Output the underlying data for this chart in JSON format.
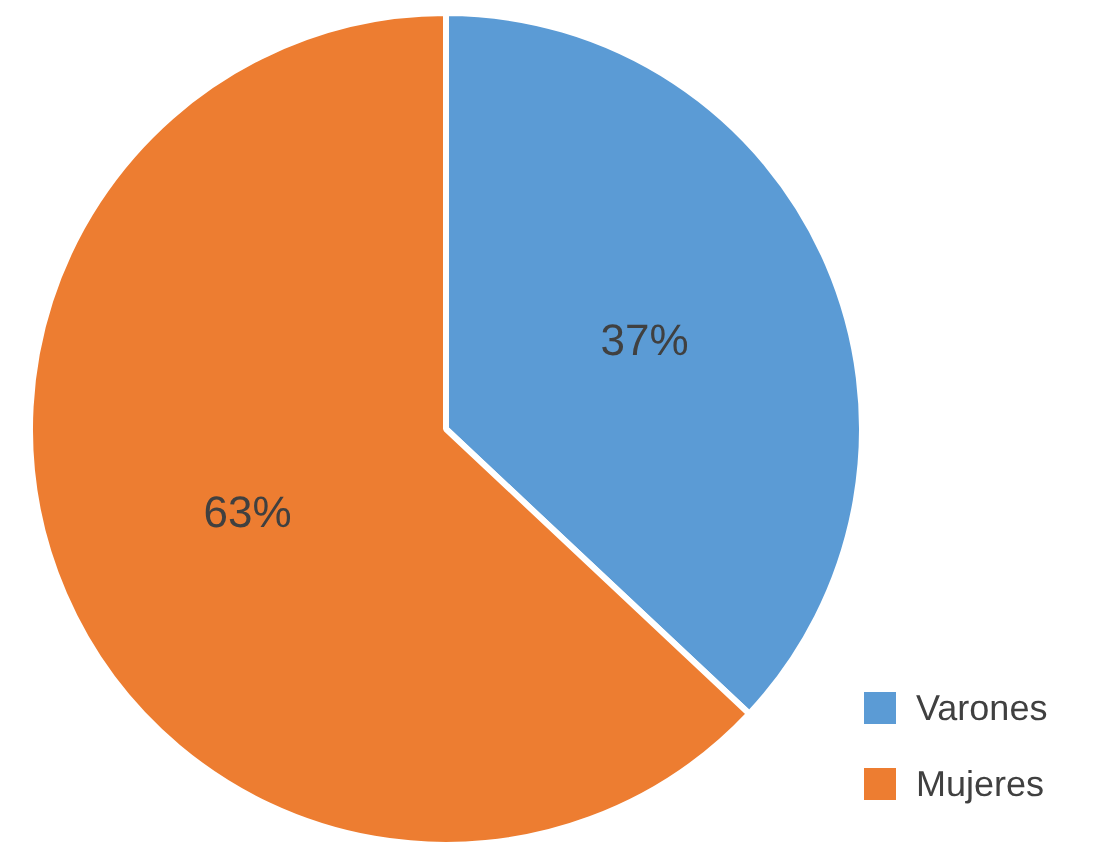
{
  "chart_data": {
    "type": "pie",
    "categories": [
      "Varones",
      "Mujeres"
    ],
    "values": [
      37,
      63
    ],
    "colors": [
      "#5b9bd5",
      "#ed7d31"
    ],
    "value_labels": [
      "37%",
      "63%"
    ],
    "legend": "bottom right"
  }
}
